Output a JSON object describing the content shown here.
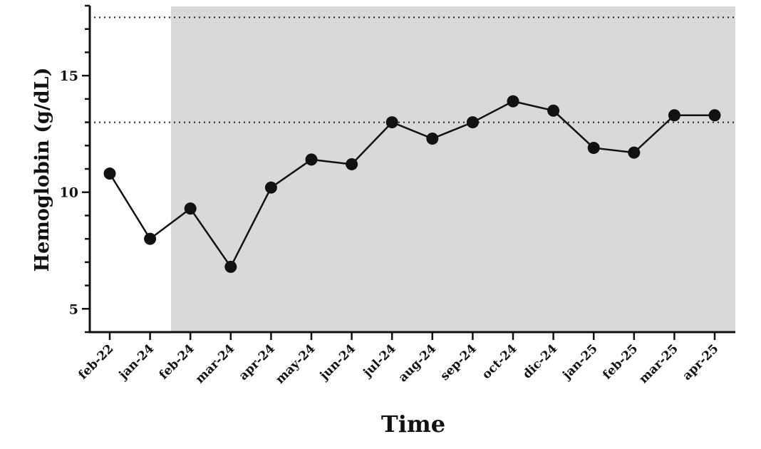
{
  "chart_data": {
    "type": "line",
    "xlabel": "Time",
    "ylabel": "Hemoglobin (g/dL)",
    "categories": [
      "feb-22",
      "jan-24",
      "feb-24",
      "mar-24",
      "apr-24",
      "may-24",
      "jun-24",
      "jul-24",
      "aug-24",
      "sep-24",
      "oct-24",
      "dic-24",
      "jan-25",
      "feb-25",
      "mar-25",
      "apr-25"
    ],
    "series": [
      {
        "values": [
          10.8,
          8.0,
          9.3,
          6.8,
          10.2,
          11.4,
          11.2,
          13.0,
          12.3,
          13.0,
          13.9,
          13.5,
          11.9,
          11.7,
          13.3,
          13.3
        ]
      }
    ],
    "ylim": [
      4,
      18
    ],
    "yticks": [
      "5",
      "10",
      "15"
    ],
    "reference_lines": [
      13,
      17.5
    ],
    "shaded_region": {
      "from_category": "feb-24",
      "to_category": "apr-25",
      "color": "#d8dad7"
    },
    "colors": {
      "line": "#111111",
      "marker": "#111111",
      "shade": "#d8dad7"
    },
    "grid": false,
    "legend": "none"
  }
}
